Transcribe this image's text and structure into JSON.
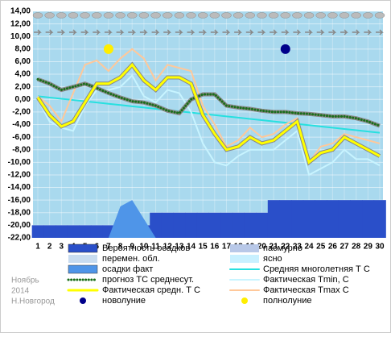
{
  "chart_data": {
    "type": "line",
    "categories": [
      1,
      2,
      3,
      4,
      5,
      6,
      7,
      8,
      9,
      10,
      11,
      12,
      13,
      14,
      15,
      16,
      17,
      18,
      19,
      20,
      21,
      22,
      23,
      24,
      25,
      26,
      27,
      28,
      29,
      30
    ],
    "ylim": [
      -22,
      14
    ],
    "yticks": [
      {
        "value": -22,
        "label": "-22,00"
      },
      {
        "value": -20,
        "label": "-20,00"
      },
      {
        "value": -18,
        "label": "-18,00"
      },
      {
        "value": -16,
        "label": "-16,00"
      },
      {
        "value": -14,
        "label": "-14,00"
      },
      {
        "value": -12,
        "label": "-12,00"
      },
      {
        "value": -10,
        "label": "-10,00"
      },
      {
        "value": -8,
        "label": "-8,00"
      },
      {
        "value": -6,
        "label": "-6,00"
      },
      {
        "value": -4,
        "label": "-4,00"
      },
      {
        "value": -2,
        "label": "-2,00"
      },
      {
        "value": 0,
        "label": "0,00"
      },
      {
        "value": 2,
        "label": "2,00"
      },
      {
        "value": 4,
        "label": "4,00"
      },
      {
        "value": 6,
        "label": "6,00"
      },
      {
        "value": 8,
        "label": "8,00"
      },
      {
        "value": 10,
        "label": "10,00"
      },
      {
        "value": 12,
        "label": "12,00"
      },
      {
        "value": 14,
        "label": "14,00"
      }
    ],
    "grid": true,
    "series": [
      {
        "name": "Вероятность осадков",
        "type": "steps",
        "color": "#2a4fc9",
        "values": [
          -20,
          -20,
          -20,
          -20,
          -20,
          -20,
          -20,
          -20,
          -20,
          -20,
          -18,
          -18,
          -18,
          -18,
          -18,
          -18,
          -18,
          -18,
          -18,
          -18,
          -16,
          -16,
          -16,
          -16,
          -16,
          -16,
          -16,
          -16,
          -16,
          -16
        ]
      },
      {
        "name": "осадки факт",
        "type": "area",
        "color": "#4f95e8",
        "values": [
          -22,
          -22,
          -22,
          -22,
          -22,
          -22,
          -22,
          -17,
          -16,
          -19,
          -22,
          -22,
          -22,
          -22,
          -22,
          -22,
          -22,
          -22,
          -22,
          -22,
          -22,
          -22,
          -22,
          -22,
          -22,
          -22,
          -22,
          -22,
          -22,
          -22
        ]
      },
      {
        "name": "Средняя многолетняя Т С",
        "type": "line",
        "color": "#27e0e0",
        "width": 2,
        "values": [
          0.5,
          0.3,
          0.1,
          -0.1,
          -0.3,
          -0.5,
          -0.7,
          -0.9,
          -1.1,
          -1.3,
          -1.5,
          -1.7,
          -1.9,
          -2.1,
          -2.3,
          -2.5,
          -2.7,
          -2.9,
          -3.1,
          -3.3,
          -3.5,
          -3.7,
          -3.9,
          -4.1,
          -4.3,
          -4.5,
          -4.7,
          -4.9,
          -5.1,
          -5.3
        ]
      },
      {
        "name": "Фактическая Tmin, С",
        "type": "line",
        "color": "#c8f4ff",
        "width": 2,
        "values": [
          0,
          -3.5,
          -4.5,
          -5,
          -1,
          1.5,
          1.5,
          2,
          3.8,
          0.5,
          -0.5,
          1.5,
          1,
          -2,
          -7,
          -10,
          -10.5,
          -9,
          -8,
          -8,
          -8,
          -6.5,
          -5,
          -12,
          -11,
          -10,
          -8,
          -9.5,
          -9.5,
          -10.5
        ]
      },
      {
        "name": "Фактическая Tmax C",
        "type": "line",
        "color": "#ffc89a",
        "width": 2,
        "values": [
          0.5,
          -1,
          -3.5,
          1,
          5.5,
          6.2,
          4.5,
          6.5,
          8,
          6.5,
          3,
          5.5,
          5,
          4.5,
          -1,
          -4,
          -7.5,
          -6.5,
          -4.5,
          -6,
          -5.5,
          -4,
          -3,
          -10,
          -7.5,
          -7,
          -5.5,
          -6,
          -6.5,
          -7
        ]
      },
      {
        "name": "прогноз ТС среднесут.",
        "type": "dotted",
        "color": "#1a6e1a",
        "width": 3,
        "values": [
          3.2,
          2.5,
          1.5,
          2,
          2.5,
          1.8,
          1,
          0.3,
          -0.3,
          -0.5,
          -1,
          -1.8,
          -2.2,
          0,
          0.8,
          0.8,
          -1,
          -1.3,
          -1.5,
          -1.8,
          -2,
          -2,
          -2.2,
          -2.3,
          -2.5,
          -2.7,
          -2.7,
          -3,
          -3.5,
          -4.2
        ]
      },
      {
        "name": "Фактическая средн. Т С",
        "type": "line",
        "color": "#ffff00",
        "width": 3,
        "values": [
          0.3,
          -2.5,
          -4.3,
          -3.5,
          -0.5,
          2.5,
          2.5,
          3.5,
          5.5,
          3,
          1.5,
          3.5,
          3.5,
          2.5,
          -2.5,
          -5.5,
          -8,
          -7.5,
          -6,
          -7,
          -6.5,
          -5,
          -3.5,
          -10,
          -8.5,
          -8,
          -6,
          -7,
          -8,
          -9
        ]
      },
      {
        "name": "новолуние",
        "type": "marker",
        "color": "#00008b",
        "x": [
          22
        ],
        "values": [
          8
        ]
      },
      {
        "name": "полнолуние",
        "type": "marker",
        "color": "#ffee00",
        "x": [
          7
        ],
        "values": [
          8
        ]
      }
    ],
    "legend_only": [
      {
        "name": "пасмурно",
        "color": "#b8c8e8"
      },
      {
        "name": "перемен. обл.",
        "color": "#c8dcf0"
      },
      {
        "name": "ясно",
        "color": "#c8f0ff"
      }
    ],
    "notes": [
      "Ноябрь",
      "2014",
      "Н.Новгород"
    ]
  }
}
